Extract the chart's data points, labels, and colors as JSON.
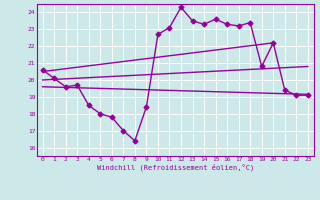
{
  "xlabel": "Windchill (Refroidissement éolien,°C)",
  "bg_color": "#cce8e8",
  "grid_color": "#ffffff",
  "line_color": "#990099",
  "x_ticks": [
    0,
    1,
    2,
    3,
    4,
    5,
    6,
    7,
    8,
    9,
    10,
    11,
    12,
    13,
    14,
    15,
    16,
    17,
    18,
    19,
    20,
    21,
    22,
    23
  ],
  "y_ticks": [
    16,
    17,
    18,
    19,
    20,
    21,
    22,
    23,
    24
  ],
  "xlim": [
    -0.5,
    23.5
  ],
  "ylim": [
    15.5,
    24.5
  ],
  "series": [
    {
      "x": [
        0,
        1,
        2,
        3,
        4,
        5,
        6,
        7,
        8,
        9,
        10,
        11,
        12,
        13,
        14,
        15,
        16,
        17,
        18,
        19,
        20,
        21,
        22,
        23
      ],
      "y": [
        20.6,
        20.1,
        19.6,
        19.7,
        18.5,
        18.0,
        17.8,
        17.0,
        16.4,
        18.4,
        22.7,
        23.1,
        24.3,
        23.5,
        23.3,
        23.6,
        23.3,
        23.2,
        23.4,
        20.8,
        22.2,
        19.4,
        19.1,
        19.1
      ],
      "marker": "D",
      "markersize": 2.5,
      "linewidth": 1.0
    },
    {
      "x": [
        0,
        20
      ],
      "y": [
        20.5,
        22.2
      ],
      "marker": null,
      "linewidth": 1.0
    },
    {
      "x": [
        0,
        23
      ],
      "y": [
        20.0,
        20.8
      ],
      "marker": null,
      "linewidth": 1.0
    },
    {
      "x": [
        0,
        23
      ],
      "y": [
        19.6,
        19.15
      ],
      "marker": null,
      "linewidth": 1.0
    }
  ]
}
